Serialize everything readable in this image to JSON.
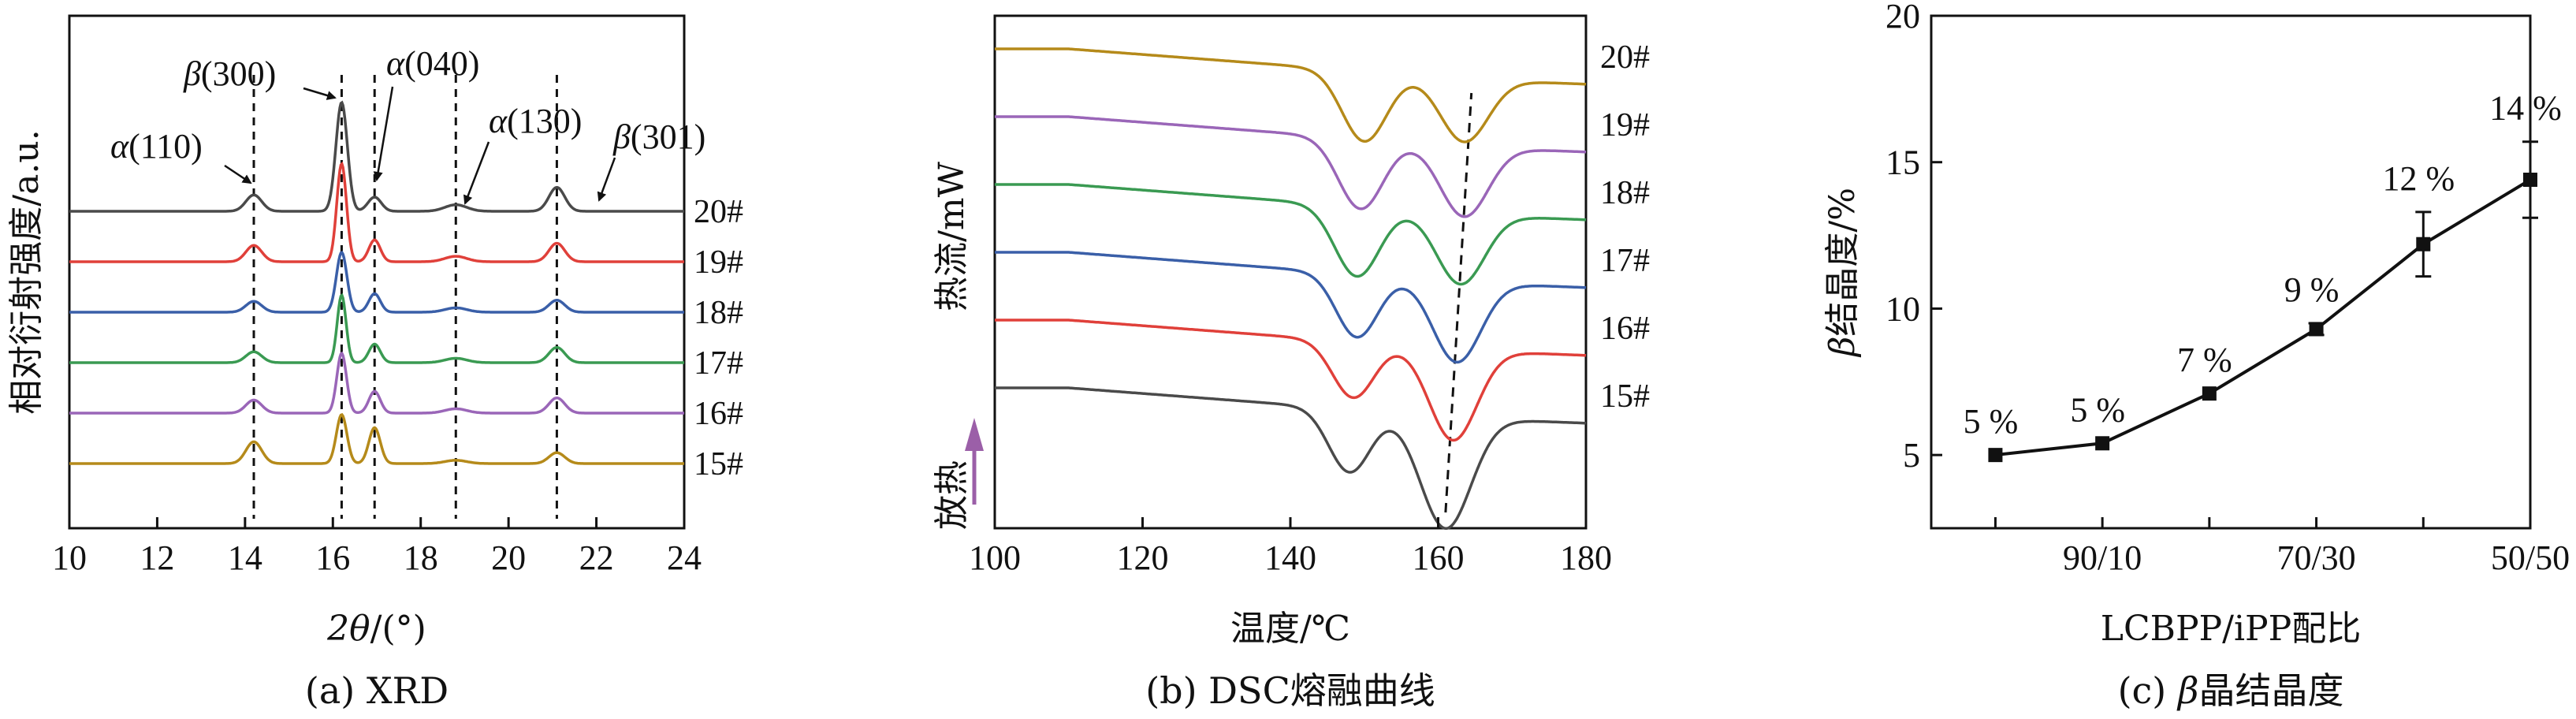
{
  "chart_data": [
    {
      "type": "line",
      "panel": "a",
      "caption": "(a) XRD",
      "xlabel_var": "2θ",
      "xlabel_unit": "/(°)",
      "ylabel": "相对衍射强度/a.u.",
      "xlim": [
        10,
        24
      ],
      "xticks": [
        10,
        12,
        14,
        16,
        18,
        20,
        22,
        24
      ],
      "samples": [
        "20#",
        "19#",
        "18#",
        "17#",
        "16#",
        "15#"
      ],
      "series": [
        {
          "name": "20#",
          "color": "#4a4a4a",
          "baseline": 0,
          "peaks": [
            [
              14.2,
              0.15,
              0.18
            ],
            [
              16.2,
              1.0,
              0.13
            ],
            [
              16.95,
              0.13,
              0.15
            ],
            [
              18.8,
              0.06,
              0.25
            ],
            [
              21.1,
              0.22,
              0.18
            ]
          ]
        },
        {
          "name": "19#",
          "color": "#e0403a",
          "baseline": 1,
          "peaks": [
            [
              14.2,
              0.15,
              0.18
            ],
            [
              16.2,
              0.9,
              0.11
            ],
            [
              16.95,
              0.2,
              0.13
            ],
            [
              18.8,
              0.05,
              0.25
            ],
            [
              21.1,
              0.17,
              0.18
            ]
          ]
        },
        {
          "name": "18#",
          "color": "#3a5fa8",
          "baseline": 2,
          "peaks": [
            [
              14.2,
              0.1,
              0.18
            ],
            [
              16.2,
              0.55,
              0.12
            ],
            [
              16.95,
              0.17,
              0.13
            ],
            [
              18.8,
              0.04,
              0.25
            ],
            [
              21.1,
              0.11,
              0.18
            ]
          ]
        },
        {
          "name": "17#",
          "color": "#3a9a52",
          "baseline": 3,
          "peaks": [
            [
              14.2,
              0.1,
              0.18
            ],
            [
              16.2,
              0.62,
              0.1
            ],
            [
              16.95,
              0.17,
              0.13
            ],
            [
              18.8,
              0.04,
              0.25
            ],
            [
              21.1,
              0.14,
              0.18
            ]
          ]
        },
        {
          "name": "16#",
          "color": "#9a66b8",
          "baseline": 4,
          "peaks": [
            [
              14.2,
              0.12,
              0.18
            ],
            [
              16.2,
              0.55,
              0.11
            ],
            [
              16.95,
              0.2,
              0.13
            ],
            [
              18.8,
              0.04,
              0.25
            ],
            [
              21.1,
              0.14,
              0.18
            ]
          ]
        },
        {
          "name": "15#",
          "color": "#b58a1a",
          "baseline": 5,
          "peaks": [
            [
              14.2,
              0.2,
              0.18
            ],
            [
              16.2,
              0.45,
              0.12
            ],
            [
              16.95,
              0.33,
              0.13
            ],
            [
              18.8,
              0.03,
              0.25
            ],
            [
              21.1,
              0.1,
              0.18
            ]
          ]
        }
      ],
      "reference_lines": [
        14.2,
        16.2,
        16.95,
        18.8,
        21.1
      ],
      "annotations": [
        {
          "greek": "α",
          "label": "(110)",
          "x": 14.2
        },
        {
          "greek": "β",
          "label": "(300)",
          "x": 16.2
        },
        {
          "greek": "α",
          "label": "(040)",
          "x": 16.95
        },
        {
          "greek": "α",
          "label": "(130)",
          "x": 18.8
        },
        {
          "greek": "β",
          "label": "(301)",
          "x": 21.1
        }
      ]
    },
    {
      "type": "line",
      "panel": "b",
      "caption": "(b) DSC熔融曲线",
      "xlabel": "温度/℃",
      "ylabel": "热流/mW",
      "arrow_label": "放热",
      "xlim": [
        100,
        180
      ],
      "xticks": [
        100,
        120,
        140,
        160,
        180
      ],
      "series": [
        {
          "name": "20#",
          "color": "#b58a1a",
          "baseline": 0,
          "dips": [
            [
              150,
              1.0,
              3.0
            ],
            [
              163.5,
              0.9,
              3.2
            ]
          ]
        },
        {
          "name": "19#",
          "color": "#9a66b8",
          "baseline": 1,
          "dips": [
            [
              149.5,
              1.0,
              3.0
            ],
            [
              163.5,
              1.0,
              3.2
            ]
          ]
        },
        {
          "name": "18#",
          "color": "#3a9a52",
          "baseline": 2,
          "dips": [
            [
              149,
              1.0,
              3.0
            ],
            [
              163,
              1.0,
              3.2
            ]
          ]
        },
        {
          "name": "17#",
          "color": "#3a5fa8",
          "baseline": 3,
          "dips": [
            [
              149,
              0.9,
              2.8
            ],
            [
              162.5,
              1.15,
              3.2
            ]
          ]
        },
        {
          "name": "16#",
          "color": "#e0403a",
          "baseline": 4,
          "dips": [
            [
              148.5,
              0.8,
              2.8
            ],
            [
              162,
              1.3,
              3.2
            ]
          ]
        },
        {
          "name": "15#",
          "color": "#4a4a4a",
          "baseline": 5,
          "dips": [
            [
              148,
              0.9,
              2.8
            ],
            [
              161,
              1.6,
              3.4
            ]
          ]
        }
      ],
      "guide_line": {
        "x": [
          161,
          164.5
        ]
      }
    },
    {
      "type": "line",
      "panel": "c",
      "caption": "(c) β晶结晶度",
      "caption_parts": [
        "(c) ",
        "β",
        "晶结晶度"
      ],
      "xlabel": "LCBPP/iPP配比",
      "ylabel_greek": "β",
      "ylabel_rest": "结晶度/%",
      "ylim": [
        2.5,
        20
      ],
      "yticks": [
        5,
        10,
        15,
        20
      ],
      "categories": [
        "",
        "90/10",
        "",
        "70/30",
        "",
        "50/50"
      ],
      "visible_xticks": [
        "90/10",
        "70/30",
        "50/50"
      ],
      "values": [
        5.0,
        5.4,
        7.1,
        9.3,
        12.2,
        14.4
      ],
      "errors": [
        0,
        0,
        0,
        0.2,
        1.1,
        1.3
      ],
      "point_labels": [
        "5 %",
        "5 %",
        "7 %",
        "9 %",
        "12 %",
        "14 %"
      ]
    }
  ]
}
